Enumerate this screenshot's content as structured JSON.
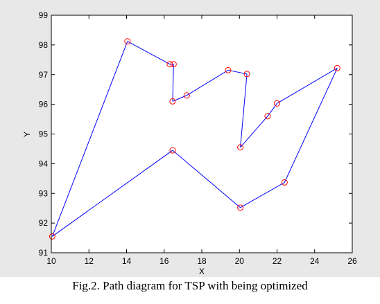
{
  "figure": {
    "background": "#e8e8e8",
    "caption": "Fig.2. Path diagram for TSP with being optimized"
  },
  "chart_data": {
    "type": "line",
    "xlabel": "X",
    "ylabel": "Y",
    "xlim": [
      10,
      26
    ],
    "ylim": [
      91,
      99
    ],
    "xticks": [
      10,
      12,
      14,
      16,
      18,
      20,
      22,
      24,
      26
    ],
    "yticks": [
      91,
      92,
      93,
      94,
      95,
      96,
      97,
      98,
      99
    ],
    "grid": false,
    "series": [
      {
        "line_color": "#0000ff",
        "marker": "circle",
        "marker_color": "#ff0000",
        "closed": true,
        "points": [
          [
            10.05,
            91.55
          ],
          [
            14.05,
            98.12
          ],
          [
            16.3,
            97.35
          ],
          [
            16.5,
            97.35
          ],
          [
            16.45,
            96.1
          ],
          [
            17.2,
            96.3
          ],
          [
            19.4,
            97.15
          ],
          [
            20.4,
            97.02
          ],
          [
            20.05,
            94.55
          ],
          [
            21.5,
            95.6
          ],
          [
            22.0,
            96.03
          ],
          [
            25.2,
            97.22
          ],
          [
            22.4,
            93.37
          ],
          [
            20.05,
            92.52
          ],
          [
            16.45,
            94.45
          ]
        ]
      }
    ]
  }
}
